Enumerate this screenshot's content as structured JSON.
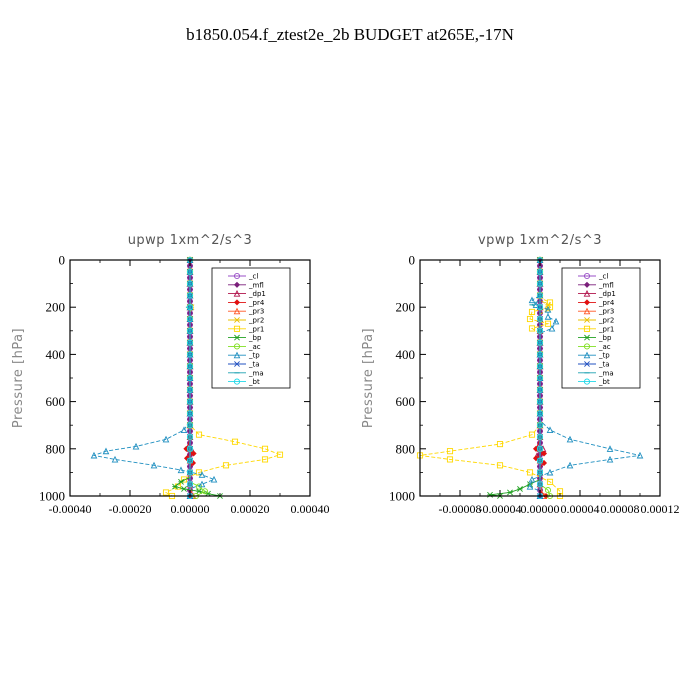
{
  "figure_title": "b1850.054.f_ztest2e_2b  BUDGET at265E,-17N",
  "chart_data": [
    {
      "type": "line",
      "title": "upwp    1xm^2/s^3",
      "ylabel": "Pressure [hPa]",
      "xlabel": "",
      "xlim": [
        -0.0004,
        0.0004
      ],
      "ylim": [
        1000,
        0
      ],
      "xticks": [
        -0.0004,
        -0.0002,
        0.0,
        0.0002,
        0.0004
      ],
      "xtick_labels": [
        "-0.00040",
        "-0.00020",
        "0.00000",
        "0.00020",
        "0.00040"
      ],
      "yticks": [
        0,
        200,
        400,
        600,
        800,
        1000
      ],
      "ytick_labels": [
        "0",
        "200",
        "400",
        "600",
        "800",
        "1000"
      ],
      "grid": false,
      "legend_position": "top-right",
      "series": [
        {
          "name": "_cl",
          "color": "#9a4fc7",
          "marker": "circle",
          "points": [
            [
              0,
              0
            ],
            [
              0,
              200
            ],
            [
              0,
              400
            ],
            [
              0,
              600
            ],
            [
              0,
              800
            ],
            [
              0,
              1000
            ]
          ]
        },
        {
          "name": "_mfl",
          "color": "#7a1f7a",
          "marker": "diamond",
          "points": [
            [
              0,
              0
            ],
            [
              0,
              300
            ],
            [
              0,
              600
            ],
            [
              0,
              1000
            ]
          ]
        },
        {
          "name": "_dp1",
          "color": "#b0124a",
          "marker": "triangle",
          "points": [
            [
              0,
              0
            ],
            [
              0,
              600
            ],
            [
              0,
              780
            ],
            [
              4e-06,
              800
            ],
            [
              -4e-06,
              830
            ],
            [
              0,
              860
            ],
            [
              0,
              1000
            ]
          ]
        },
        {
          "name": "_pr4",
          "color": "#e01010",
          "marker": "diamond",
          "points": [
            [
              0,
              0
            ],
            [
              0,
              760
            ],
            [
              -1.2e-05,
              800
            ],
            [
              1.2e-05,
              820
            ],
            [
              -1e-05,
              840
            ],
            [
              1e-05,
              860
            ],
            [
              0,
              880
            ],
            [
              0,
              1000
            ]
          ]
        },
        {
          "name": "_pr3",
          "color": "#ff5522",
          "marker": "triangle",
          "points": [
            [
              0,
              0
            ],
            [
              0,
              960
            ],
            [
              1e-05,
              1000
            ]
          ]
        },
        {
          "name": "_pr2",
          "color": "#e8c000",
          "marker": "cross",
          "points": [
            [
              0,
              0
            ],
            [
              0,
              180
            ],
            [
              5e-06,
              200
            ],
            [
              0,
              230
            ],
            [
              0,
              1000
            ]
          ]
        },
        {
          "name": "_pr1",
          "color": "#ffd800",
          "marker": "square",
          "points": [
            [
              0,
              0
            ],
            [
              0,
              700
            ],
            [
              3e-05,
              740
            ],
            [
              0.00015,
              770
            ],
            [
              0.00025,
              800
            ],
            [
              0.0003,
              825
            ],
            [
              0.00025,
              845
            ],
            [
              0.00012,
              870
            ],
            [
              3e-05,
              900
            ],
            [
              -2e-05,
              930
            ],
            [
              -4e-05,
              960
            ],
            [
              -8e-05,
              985
            ],
            [
              -6e-05,
              1000
            ]
          ]
        },
        {
          "name": "_bp",
          "color": "#20a020",
          "marker": "star",
          "points": [
            [
              0,
              0
            ],
            [
              0,
              920
            ],
            [
              -3e-05,
              940
            ],
            [
              -5e-05,
              960
            ],
            [
              -2e-05,
              970
            ],
            [
              3e-05,
              980
            ],
            [
              6e-05,
              990
            ],
            [
              0.0001,
              1000
            ]
          ]
        },
        {
          "name": "_ac",
          "color": "#80e020",
          "marker": "circle",
          "points": [
            [
              0,
              0
            ],
            [
              0,
              940
            ],
            [
              3e-05,
              960
            ],
            [
              5e-05,
              980
            ],
            [
              2e-05,
              1000
            ]
          ]
        },
        {
          "name": "_tp",
          "color": "#1f8fc0",
          "marker": "triangle",
          "points": [
            [
              0,
              0
            ],
            [
              0,
              680
            ],
            [
              -2e-05,
              720
            ],
            [
              -8e-05,
              760
            ],
            [
              -0.00018,
              790
            ],
            [
              -0.00028,
              810
            ],
            [
              -0.00032,
              828
            ],
            [
              -0.00025,
              845
            ],
            [
              -0.00012,
              870
            ],
            [
              -3e-05,
              890
            ],
            [
              4e-05,
              910
            ],
            [
              8e-05,
              930
            ],
            [
              4e-05,
              950
            ],
            [
              0,
              970
            ],
            [
              0,
              1000
            ]
          ]
        },
        {
          "name": "_ta",
          "color": "#2050c0",
          "marker": "cross",
          "points": [
            [
              0,
              0
            ],
            [
              0,
              1000
            ]
          ]
        },
        {
          "name": "_ma",
          "color": "#1aa0b0",
          "marker": "dash",
          "points": [
            [
              0,
              0
            ],
            [
              0,
              190
            ],
            [
              -5e-06,
              200
            ],
            [
              0,
              215
            ],
            [
              0,
              1000
            ]
          ]
        },
        {
          "name": "_bt",
          "color": "#20d8e8",
          "marker": "circle",
          "points": [
            [
              0,
              0
            ],
            [
              0,
              1000
            ]
          ]
        }
      ]
    },
    {
      "type": "line",
      "title": "vpwp    1xm^2/s^3",
      "ylabel": "Pressure [hPa]",
      "xlabel": "",
      "xlim": [
        -0.00012,
        0.00012
      ],
      "ylim": [
        1000,
        0
      ],
      "xticks": [
        -8e-05,
        -4e-05,
        0.0,
        4e-05,
        8e-05,
        0.00012
      ],
      "xtick_labels": [
        "-0.00008",
        "-0.00004",
        "0.00000",
        "0.00004",
        "0.00008",
        "0.00012"
      ],
      "yticks": [
        0,
        200,
        400,
        600,
        800,
        1000
      ],
      "ytick_labels": [
        "0",
        "200",
        "400",
        "600",
        "800",
        "1000"
      ],
      "grid": false,
      "legend_position": "top-right",
      "series": [
        {
          "name": "_cl",
          "color": "#9a4fc7",
          "marker": "circle",
          "points": [
            [
              0,
              0
            ],
            [
              0,
              200
            ],
            [
              0,
              400
            ],
            [
              0,
              600
            ],
            [
              0,
              800
            ],
            [
              0,
              1000
            ]
          ]
        },
        {
          "name": "_mfl",
          "color": "#7a1f7a",
          "marker": "diamond",
          "points": [
            [
              0,
              0
            ],
            [
              0,
              300
            ],
            [
              0,
              600
            ],
            [
              0,
              1000
            ]
          ]
        },
        {
          "name": "_dp1",
          "color": "#b0124a",
          "marker": "triangle",
          "points": [
            [
              0,
              0
            ],
            [
              0,
              780
            ],
            [
              3e-06,
              800
            ],
            [
              -3e-06,
              830
            ],
            [
              0,
              860
            ],
            [
              0,
              1000
            ]
          ]
        },
        {
          "name": "_pr4",
          "color": "#e01010",
          "marker": "diamond",
          "points": [
            [
              0,
              0
            ],
            [
              0,
              760
            ],
            [
              -4e-06,
              800
            ],
            [
              4e-06,
              820
            ],
            [
              -4e-06,
              840
            ],
            [
              4e-06,
              860
            ],
            [
              0,
              880
            ],
            [
              0,
              980
            ],
            [
              6e-06,
              1000
            ]
          ]
        },
        {
          "name": "_pr3",
          "color": "#ff5522",
          "marker": "triangle",
          "points": [
            [
              0,
              0
            ],
            [
              0,
              960
            ],
            [
              4e-06,
              1000
            ]
          ]
        },
        {
          "name": "_pr2",
          "color": "#e8c000",
          "marker": "cross",
          "points": [
            [
              0,
              0
            ],
            [
              0,
              170
            ],
            [
              8e-06,
              190
            ],
            [
              8e-06,
              210
            ],
            [
              0,
              230
            ],
            [
              0,
              1000
            ]
          ]
        },
        {
          "name": "_pr1",
          "color": "#ffd800",
          "marker": "square",
          "points": [
            [
              0,
              0
            ],
            [
              0,
              160
            ],
            [
              1e-05,
              180
            ],
            [
              1e-05,
              200
            ],
            [
              -8e-06,
              220
            ],
            [
              -1e-05,
              250
            ],
            [
              8e-06,
              270
            ],
            [
              -8e-06,
              290
            ],
            [
              0,
              310
            ],
            [
              0,
              700
            ],
            [
              -8e-06,
              740
            ],
            [
              -4e-05,
              780
            ],
            [
              -9e-05,
              810
            ],
            [
              -0.00012,
              828
            ],
            [
              -9e-05,
              845
            ],
            [
              -4e-05,
              870
            ],
            [
              -1e-05,
              900
            ],
            [
              1e-05,
              940
            ],
            [
              2e-05,
              980
            ],
            [
              2e-05,
              1000
            ]
          ]
        },
        {
          "name": "_bp",
          "color": "#20a020",
          "marker": "star",
          "points": [
            [
              0,
              0
            ],
            [
              0,
              930
            ],
            [
              -1e-05,
              950
            ],
            [
              -2e-05,
              970
            ],
            [
              -3e-05,
              985
            ],
            [
              -5e-05,
              995
            ],
            [
              -4e-05,
              1000
            ]
          ]
        },
        {
          "name": "_ac",
          "color": "#80e020",
          "marker": "circle",
          "points": [
            [
              0,
              0
            ],
            [
              0,
              950
            ],
            [
              8e-06,
              975
            ],
            [
              1e-05,
              1000
            ]
          ]
        },
        {
          "name": "_tp",
          "color": "#1f8fc0",
          "marker": "triangle",
          "points": [
            [
              0,
              0
            ],
            [
              0,
              150
            ],
            [
              -8e-06,
              170
            ],
            [
              -4e-06,
              190
            ],
            [
              8e-06,
              210
            ],
            [
              8e-06,
              240
            ],
            [
              1.6e-05,
              260
            ],
            [
              1.2e-05,
              290
            ],
            [
              0,
              310
            ],
            [
              0,
              680
            ],
            [
              1e-05,
              720
            ],
            [
              3e-05,
              760
            ],
            [
              7e-05,
              800
            ],
            [
              0.0001,
              828
            ],
            [
              7e-05,
              845
            ],
            [
              3e-05,
              870
            ],
            [
              1e-05,
              900
            ],
            [
              -8e-06,
              930
            ],
            [
              -1e-05,
              960
            ],
            [
              0,
              980
            ],
            [
              0,
              1000
            ]
          ]
        },
        {
          "name": "_ta",
          "color": "#2050c0",
          "marker": "cross",
          "points": [
            [
              0,
              0
            ],
            [
              0,
              1000
            ]
          ]
        },
        {
          "name": "_ma",
          "color": "#1aa0b0",
          "marker": "dash",
          "points": [
            [
              0,
              0
            ],
            [
              0,
              170
            ],
            [
              -8e-06,
              190
            ],
            [
              0,
              210
            ],
            [
              0,
              1000
            ]
          ]
        },
        {
          "name": "_bt",
          "color": "#20d8e8",
          "marker": "circle",
          "points": [
            [
              0,
              0
            ],
            [
              0,
              1000
            ]
          ]
        }
      ]
    }
  ]
}
